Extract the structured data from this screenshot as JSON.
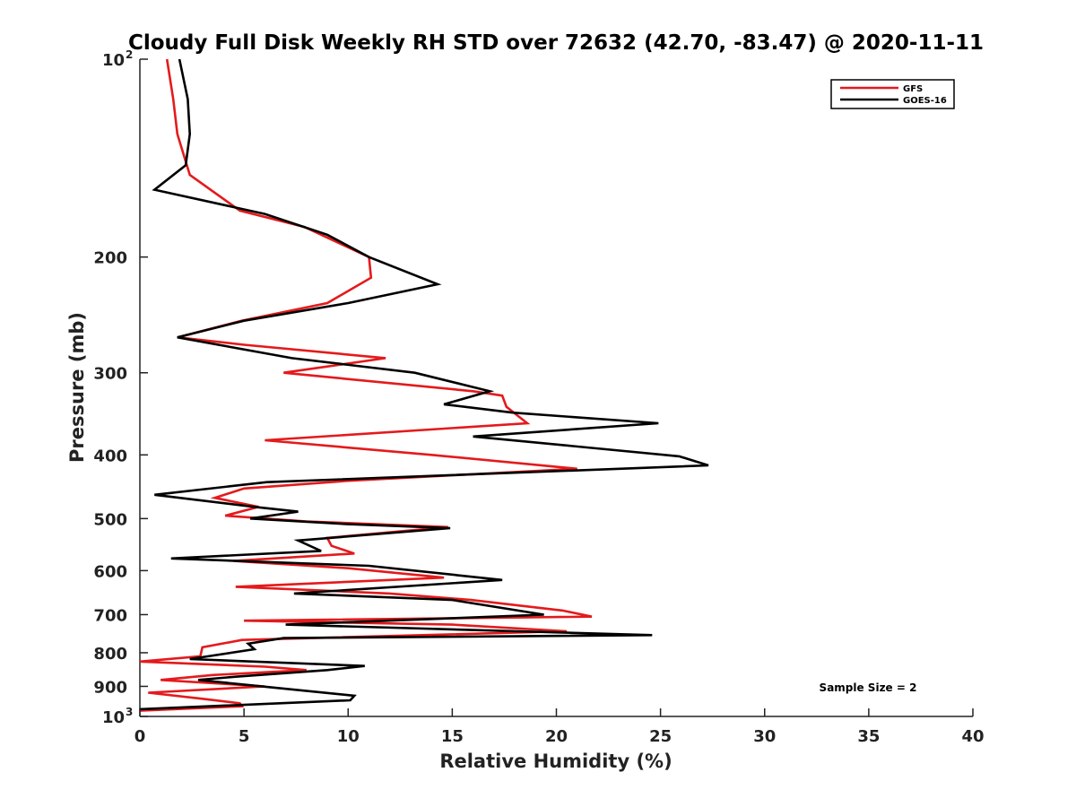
{
  "chart_data": {
    "type": "line",
    "title": "Cloudy Full Disk Weekly RH STD over 72632 (42.70, -83.47) @ 2020-11-11",
    "xlabel": "Relative Humidity (%)",
    "ylabel": "Pressure (mb)",
    "xlim": [
      0,
      40
    ],
    "ylim": [
      100,
      1000
    ],
    "y_scale": "log",
    "y_reversed": true,
    "grid": false,
    "legend_position": "top-right",
    "x_ticks": [
      0,
      5,
      10,
      15,
      20,
      25,
      30,
      35,
      40
    ],
    "x_tick_labels": [
      "0",
      "5",
      "10",
      "15",
      "20",
      "25",
      "30",
      "35",
      "40"
    ],
    "y_ticks": [
      100,
      200,
      300,
      400,
      500,
      600,
      700,
      800,
      900,
      1000
    ],
    "y_tick_labels": [
      {
        "base": "10",
        "exp": "2"
      },
      {
        "base": "200",
        "exp": ""
      },
      {
        "base": "300",
        "exp": ""
      },
      {
        "base": "400",
        "exp": ""
      },
      {
        "base": "500",
        "exp": ""
      },
      {
        "base": "600",
        "exp": ""
      },
      {
        "base": "700",
        "exp": ""
      },
      {
        "base": "800",
        "exp": ""
      },
      {
        "base": "900",
        "exp": ""
      },
      {
        "base": "10",
        "exp": "3"
      }
    ],
    "annotation": "Sample Size = 2",
    "series": [
      {
        "name": "GFS",
        "color": "#e41a1c",
        "points": [
          [
            1.3,
            100
          ],
          [
            1.6,
            115
          ],
          [
            1.8,
            130
          ],
          [
            2.4,
            150
          ],
          [
            4.8,
            170
          ],
          [
            7.9,
            180
          ],
          [
            11,
            200
          ],
          [
            11.1,
            215
          ],
          [
            9,
            235
          ],
          [
            4.9,
            250
          ],
          [
            1.8,
            265
          ],
          [
            5,
            272
          ],
          [
            11.8,
            285
          ],
          [
            6.9,
            300
          ],
          [
            16,
            320
          ],
          [
            17.4,
            325
          ],
          [
            17.6,
            338
          ],
          [
            18.6,
            358
          ],
          [
            6,
            380
          ],
          [
            14,
            400
          ],
          [
            21,
            420
          ],
          [
            10,
            438
          ],
          [
            5,
            450
          ],
          [
            3.6,
            465
          ],
          [
            5.7,
            480
          ],
          [
            4.1,
            495
          ],
          [
            8,
            505
          ],
          [
            14.8,
            515
          ],
          [
            9,
            535
          ],
          [
            9.2,
            550
          ],
          [
            10.3,
            565
          ],
          [
            4.5,
            580
          ],
          [
            10,
            595
          ],
          [
            14.6,
            615
          ],
          [
            4.6,
            635
          ],
          [
            12,
            650
          ],
          [
            15.9,
            665
          ],
          [
            20.3,
            690
          ],
          [
            21.7,
            705
          ],
          [
            5,
            715
          ],
          [
            15,
            725
          ],
          [
            20.5,
            742
          ],
          [
            4.9,
            765
          ],
          [
            3,
            785
          ],
          [
            2.9,
            810
          ],
          [
            0,
            825
          ],
          [
            6,
            840
          ],
          [
            8,
            850
          ],
          [
            3.5,
            865
          ],
          [
            1,
            880
          ],
          [
            6,
            900
          ],
          [
            0.4,
            920
          ],
          [
            3,
            940
          ],
          [
            4.8,
            955
          ],
          [
            4.9,
            965
          ],
          [
            0,
            980
          ]
        ]
      },
      {
        "name": "GOES-16",
        "color": "#000000",
        "points": [
          [
            1.9,
            100
          ],
          [
            2.3,
            115
          ],
          [
            2.4,
            130
          ],
          [
            2.2,
            145
          ],
          [
            0.7,
            158
          ],
          [
            6,
            172
          ],
          [
            9,
            185
          ],
          [
            11,
            200
          ],
          [
            14.3,
            220
          ],
          [
            10,
            235
          ],
          [
            5,
            250
          ],
          [
            1.8,
            265
          ],
          [
            7.3,
            285
          ],
          [
            13.2,
            300
          ],
          [
            16.8,
            320
          ],
          [
            14.6,
            335
          ],
          [
            17.9,
            345
          ],
          [
            24.9,
            358
          ],
          [
            16,
            375
          ],
          [
            25.9,
            402
          ],
          [
            27.3,
            415
          ],
          [
            6.1,
            440
          ],
          [
            0.7,
            460
          ],
          [
            5.5,
            480
          ],
          [
            7.6,
            488
          ],
          [
            5.3,
            500
          ],
          [
            10,
            510
          ],
          [
            14.9,
            517
          ],
          [
            7.6,
            540
          ],
          [
            8.7,
            560
          ],
          [
            1.5,
            575
          ],
          [
            11,
            590
          ],
          [
            17.4,
            620
          ],
          [
            7.4,
            650
          ],
          [
            15,
            665
          ],
          [
            19.4,
            700
          ],
          [
            7,
            725
          ],
          [
            24.6,
            752
          ],
          [
            6.9,
            760
          ],
          [
            5.2,
            775
          ],
          [
            5.5,
            790
          ],
          [
            2.4,
            818
          ],
          [
            10.8,
            838
          ],
          [
            9,
            850
          ],
          [
            4.6,
            870
          ],
          [
            2.8,
            880
          ],
          [
            10.3,
            930
          ],
          [
            10.1,
            945
          ],
          [
            0,
            975
          ]
        ]
      }
    ]
  }
}
